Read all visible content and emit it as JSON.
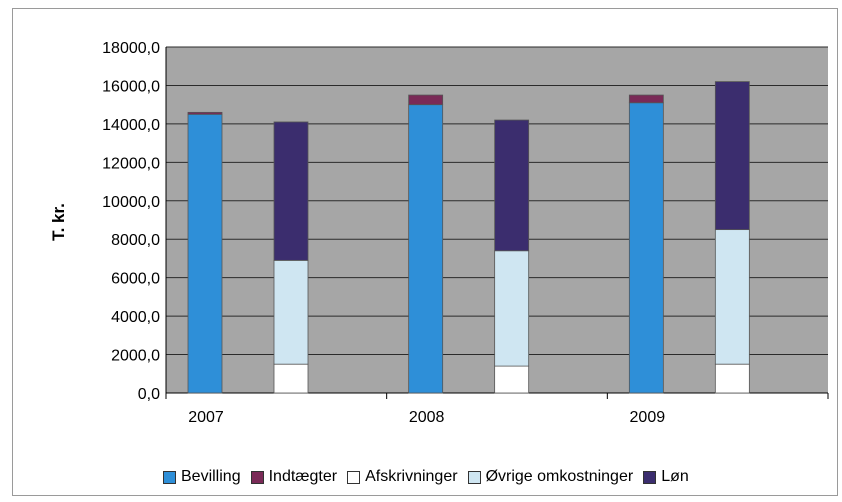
{
  "chart_data": {
    "type": "bar",
    "stacked": true,
    "ylabel": "T. kr.",
    "xlabel": "",
    "title": "",
    "ylim": [
      0,
      18000
    ],
    "yticks": [
      "0,0",
      "2000,0",
      "4000,0",
      "6000,0",
      "8000,0",
      "10000,0",
      "12000,0",
      "14000,0",
      "16000,0",
      "18000,0"
    ],
    "categories": [
      "2007",
      "2008",
      "2009"
    ],
    "grid": true,
    "legend_position": "bottom",
    "stack_groups": [
      {
        "group": "income",
        "series": [
          {
            "name": "Bevilling",
            "color": "#2e8fd8",
            "values": [
              14500,
              15000,
              15100
            ]
          },
          {
            "name": "Indtægter",
            "color": "#7a2a57",
            "values": [
              100,
              500,
              400
            ]
          }
        ]
      },
      {
        "group": "expenses",
        "series": [
          {
            "name": "Afskrivninger",
            "color": "#ffffff",
            "values": [
              1500,
              1400,
              1500
            ]
          },
          {
            "name": "Øvrige omkostninger",
            "color": "#cfe6f2",
            "values": [
              5400,
              6000,
              7000
            ]
          },
          {
            "name": "Løn",
            "color": "#3b2d6e",
            "values": [
              7200,
              6800,
              7700
            ]
          }
        ]
      }
    ]
  },
  "colors": {
    "plot_background": "#a6a6a6",
    "gridline": "#2b2b2b"
  },
  "legend": [
    {
      "label": "Bevilling",
      "color": "#2e8fd8"
    },
    {
      "label": "Indtægter",
      "color": "#7a2a57"
    },
    {
      "label": "Afskrivninger",
      "color": "#ffffff"
    },
    {
      "label": "Øvrige omkostninger",
      "color": "#cfe6f2"
    },
    {
      "label": "Løn",
      "color": "#3b2d6e"
    }
  ]
}
